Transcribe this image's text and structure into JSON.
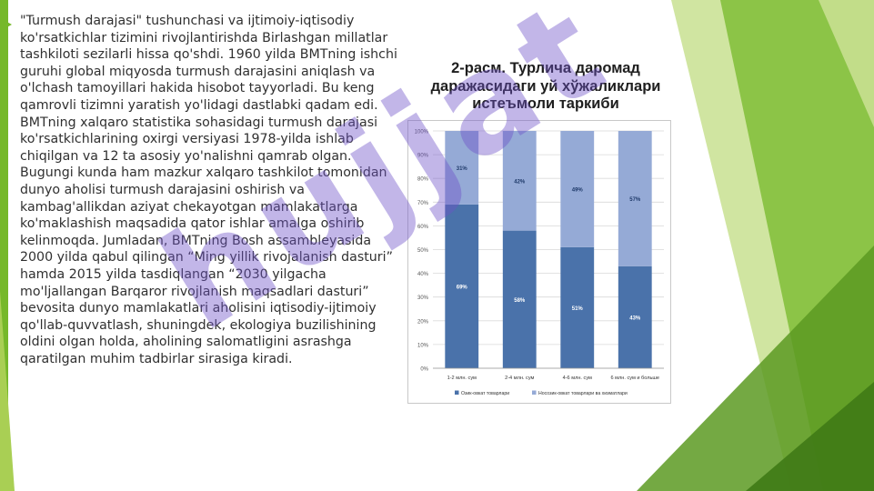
{
  "body_text": "\"Turmush darajasi\" tushunchasi va ijtimoiy-iqtisodiy ko'rsatkichlar tizimini rivojlantirishda Birlashgan millatlar tashkiloti sezilarli hissa qo'shdi. 1960 yilda BMTning ishchi guruhi global miqyosda turmush darajasini aniqlash va o'lchash tamoyillari hakida hisobot tayyorladi. Bu keng qamrovli tizimni yaratish yo'lidagi dastlabki qadam edi. BMTning xalqaro statistika sohasidagi turmush darajasi ko'rsatkichlarining oxirgi versiyasi 1978-yilda ishlab chiqilgan va 12 ta asosiy yo'nalishni qamrab olgan. Bugungi kunda ham mazkur xalqaro tashkilot tomonidan dunyo aholisi turmush darajasini oshirish va kambag'allikdan aziyat chekayotgan mamlakatlarga ko'maklashish maqsadida qator ishlar amalga oshirib kelinmoqda. Jumladan, BMTning Bosh assambleyasida 2000 yilda qabul qilingan “Ming yillik rivojalanish dasturi” hamda 2015 yilda tasdiqlangan “2030 yilgacha mo'ljallangan Barqaror rivojlanish maqsadlari dasturi” bevosita dunyo mamlakatlari aholisini iqtisodiy-ijtimoiy qo'llab-quvvatlash, shuningdek, ekologiya buzilishining oldini olgan holda, aholining salomatligini asrashga qaratilgan muhim tadbirlar sirasiga kiradi.",
  "watermark": "hujjat",
  "colors": {
    "green_dark": "#4e8a1c",
    "green_mid": "#76b82a",
    "green_light": "#a9cf54",
    "series_food": "#4a72aa",
    "series_nonfood": "#95aad6",
    "watermark": "#6e50c8"
  },
  "chart_data": {
    "type": "bar",
    "stacked": true,
    "title_lines": [
      "2-расм. Турлича даромад",
      "даражасидаги уй хўжаликлари",
      "истеъмоли таркиби"
    ],
    "categories": [
      "1-2 млн. сум",
      "2-4 млн. сум",
      "4-6 млн. сум",
      "6 млн. сум и больше"
    ],
    "series": [
      {
        "name": "Озик-овкат товарлари",
        "values": [
          69,
          58,
          51,
          43
        ],
        "labels": [
          "69%",
          "58%",
          "51%",
          "43%"
        ],
        "color": "#4a72aa"
      },
      {
        "name": "Носозик-овкат товарлари ва хизматлари",
        "values": [
          31,
          42,
          49,
          57
        ],
        "labels": [
          "31%",
          "42%",
          "49%",
          "57%"
        ],
        "color": "#95aad6"
      }
    ],
    "y_ticks": [
      "0%",
      "10%",
      "20%",
      "30%",
      "40%",
      "50%",
      "60%",
      "70%",
      "80%",
      "90%",
      "100%"
    ],
    "ylim": [
      0,
      100
    ],
    "grid": true,
    "legend_position": "bottom"
  }
}
